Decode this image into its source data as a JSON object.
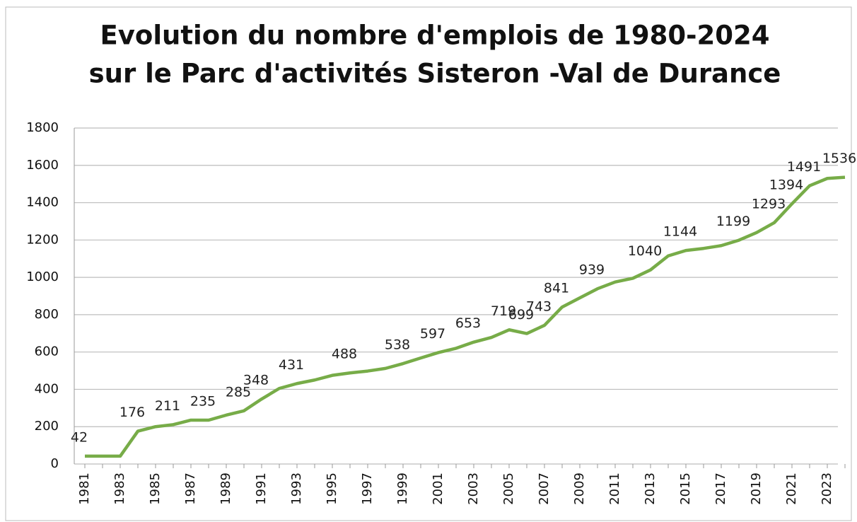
{
  "chart_data": {
    "type": "line",
    "title": [
      "Evolution du nombre d'emplois de 1980-2024",
      "sur le Parc d'activités Sisteron -Val de Durance"
    ],
    "categories": [
      "1981",
      null,
      "1983",
      null,
      "1985",
      null,
      "1987",
      null,
      "1989",
      null,
      "1991",
      null,
      "1993",
      null,
      "1995",
      null,
      "1997",
      null,
      "1999",
      null,
      "2001",
      null,
      "2003",
      null,
      "2005",
      null,
      "2007",
      null,
      "2009",
      null,
      "2011",
      null,
      "2013",
      null,
      "2015",
      null,
      "2017",
      null,
      "2019",
      null,
      "2021",
      null,
      "2023",
      null
    ],
    "series": [
      {
        "color": "#77ac48",
        "values": [
          42,
          42,
          42,
          176,
          200,
          211,
          235,
          235,
          262,
          285,
          348,
          405,
          431,
          450,
          475,
          488,
          498,
          512,
          538,
          568,
          597,
          620,
          653,
          678,
          719,
          699,
          743,
          841,
          890,
          939,
          975,
          995,
          1040,
          1115,
          1144,
          1155,
          1170,
          1199,
          1240,
          1293,
          1394,
          1491,
          1530,
          1536
        ],
        "value_labels": [
          "42",
          null,
          null,
          "176",
          null,
          "211",
          null,
          "235",
          null,
          "285",
          "348",
          null,
          "431",
          null,
          null,
          "488",
          null,
          null,
          "538",
          null,
          "597",
          null,
          "653",
          null,
          "719",
          "699",
          "743",
          "841",
          null,
          "939",
          null,
          null,
          "1040",
          null,
          "1144",
          null,
          null,
          "1199",
          null,
          "1293",
          "1394",
          "1491",
          null,
          "1536"
        ]
      }
    ],
    "ylim": [
      0,
      1800
    ],
    "yticks": [
      0,
      200,
      400,
      600,
      800,
      1000,
      1200,
      1400,
      1600,
      1800
    ],
    "grid": true
  }
}
